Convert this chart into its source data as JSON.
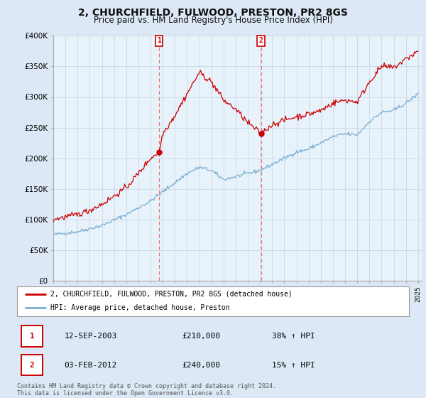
{
  "title": "2, CHURCHFIELD, FULWOOD, PRESTON, PR2 8GS",
  "subtitle": "Price paid vs. HM Land Registry's House Price Index (HPI)",
  "y_min": 0,
  "y_max": 400000,
  "y_ticks": [
    0,
    50000,
    100000,
    150000,
    200000,
    250000,
    300000,
    350000,
    400000
  ],
  "y_tick_labels": [
    "£0",
    "£50K",
    "£100K",
    "£150K",
    "£200K",
    "£250K",
    "£300K",
    "£350K",
    "£400K"
  ],
  "sale1_date": 2003.7,
  "sale1_price": 210000,
  "sale1_label": "1",
  "sale1_date_str": "12-SEP-2003",
  "sale1_hpi_pct": "38% ↑ HPI",
  "sale2_date": 2012.08,
  "sale2_price": 240000,
  "sale2_label": "2",
  "sale2_date_str": "03-FEB-2012",
  "sale2_hpi_pct": "15% ↑ HPI",
  "hpi_line_color": "#7aadd4",
  "price_line_color": "#cc0000",
  "dashed_line_color": "#e87070",
  "bg_color": "#dce8f5",
  "plot_bg_color": "#e8f2fa",
  "sale_marker_color": "#cc0000",
  "footer_text": "Contains HM Land Registry data © Crown copyright and database right 2024.\nThis data is licensed under the Open Government Licence v3.0.",
  "legend1_text": "2, CHURCHFIELD, FULWOOD, PRESTON, PR2 8GS (detached house)",
  "legend2_text": "HPI: Average price, detached house, Preston",
  "hpi_anchors_x": [
    1995,
    1997,
    1999,
    2001,
    2003,
    2004,
    2005,
    2006,
    2007,
    2008,
    2009,
    2010,
    2011,
    2012,
    2013,
    2014,
    2015,
    2016,
    2017,
    2018,
    2019,
    2020,
    2021,
    2022,
    2023,
    2024,
    2025
  ],
  "hpi_anchors_y": [
    75000,
    80000,
    90000,
    108000,
    130000,
    145000,
    160000,
    175000,
    185000,
    180000,
    165000,
    170000,
    175000,
    180000,
    190000,
    200000,
    210000,
    215000,
    225000,
    235000,
    240000,
    238000,
    260000,
    275000,
    278000,
    290000,
    305000
  ],
  "price_anchors_x": [
    1995,
    1996,
    1997,
    1998,
    1999,
    2000,
    2001,
    2002,
    2003,
    2003.7,
    2004,
    2005,
    2006,
    2007,
    2008,
    2009,
    2010,
    2011,
    2012.08,
    2013,
    2014,
    2015,
    2016,
    2017,
    2018,
    2019,
    2020,
    2021,
    2022,
    2023,
    2024,
    2025
  ],
  "price_anchors_y": [
    100000,
    104000,
    108000,
    115000,
    125000,
    138000,
    152000,
    175000,
    200000,
    210000,
    240000,
    270000,
    305000,
    340000,
    325000,
    295000,
    280000,
    258000,
    240000,
    255000,
    262000,
    268000,
    272000,
    278000,
    290000,
    295000,
    292000,
    325000,
    350000,
    348000,
    362000,
    375000
  ]
}
